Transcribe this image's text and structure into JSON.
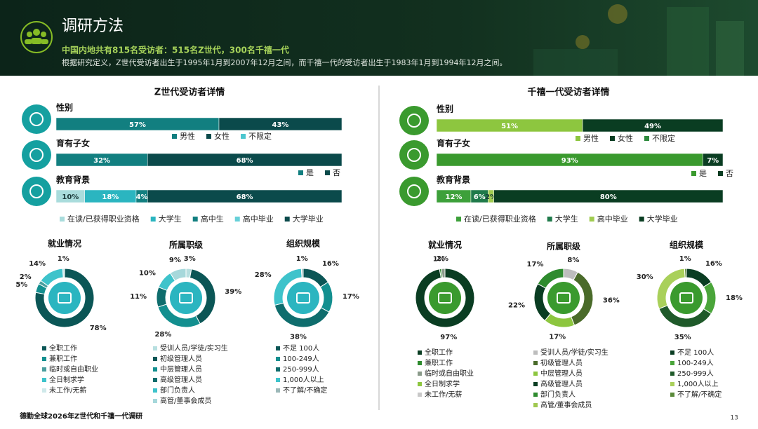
{
  "header": {
    "title": "调研方法",
    "subtitle": "中国内地共有815名受访者：515名Z世代，300名千禧一代",
    "note": "根据研究定义，Z世代受访者出生于1995年1月到2007年12月之间，而千禧一代的受访者出生于1983年1月到1994年12月之间。"
  },
  "panels": [
    {
      "title": "Z世代受访者详情"
    },
    {
      "title": "千禧一代受访者详情"
    }
  ],
  "footer": {
    "source": "德勤全球2026年Z世代和千禧一代调研",
    "page": "13"
  },
  "chart_data": [
    {
      "type": "stacked-bar",
      "title": "性别",
      "xlim": [
        0,
        100
      ],
      "series": [
        {
          "name": "男性",
          "color": "#127f80",
          "values": [
            57
          ],
          "value_labels": [
            "57%"
          ]
        },
        {
          "name": "女性",
          "color": "#0b4a4b",
          "values": [
            43
          ],
          "value_labels": [
            "43%"
          ]
        },
        {
          "name": "不限定",
          "color": "#4cc6cf",
          "values": [
            0
          ],
          "value_labels": [
            null
          ]
        }
      ]
    },
    {
      "type": "stacked-bar",
      "title": "育有子女",
      "xlim": [
        0,
        100
      ],
      "series": [
        {
          "name": "是",
          "color": "#127f80",
          "values": [
            32
          ],
          "value_labels": [
            "32%"
          ]
        },
        {
          "name": "否",
          "color": "#0b4a4b",
          "values": [
            68
          ],
          "value_labels": [
            "68%"
          ]
        }
      ]
    },
    {
      "type": "stacked-bar",
      "title": "教育背景",
      "xlim": [
        0,
        100
      ],
      "series": [
        {
          "name": "在读/已获得职业资格",
          "color": "#a9dcdc",
          "values": [
            10
          ],
          "value_labels": [
            "10%"
          ]
        },
        {
          "name": "大学生",
          "color": "#2bb5c0",
          "values": [
            18
          ],
          "value_labels": [
            "18%"
          ]
        },
        {
          "name": "高中生",
          "color": "#127f80",
          "values": [
            4
          ],
          "value_labels": [
            "4%"
          ]
        },
        {
          "name": "高中毕业",
          "color": "#66d0d8",
          "values": [
            0
          ],
          "value_labels": [
            null
          ]
        },
        {
          "name": "大学毕业",
          "color": "#0b4a4b",
          "values": [
            68
          ],
          "value_labels": [
            "68%"
          ]
        }
      ]
    },
    {
      "type": "donut",
      "title": "就业情况",
      "categories": [
        "全职工作",
        "兼职工作",
        "临时或自由职业",
        "全日制求学",
        "未工作/无薪"
      ],
      "values": [
        78,
        5,
        2,
        14,
        1
      ],
      "value_labels": [
        "78%",
        "5%",
        "2%",
        "14%",
        "1%"
      ],
      "colors": [
        "#0b5656",
        "#138f8f",
        "#4a9e9e",
        "#3ec3cb",
        "#cfe9ea"
      ]
    },
    {
      "type": "donut",
      "title": "所属职级",
      "categories": [
        "受训人员/学徒/实习生",
        "初级管理人员",
        "中层管理人员",
        "高级管理人员",
        "部门负责人",
        "高管/董事会成员"
      ],
      "values": [
        3,
        39,
        28,
        11,
        10,
        9
      ],
      "value_labels": [
        "3%",
        "39%",
        "28%",
        "11%",
        "10%",
        "9%"
      ],
      "colors": [
        "#b7dfe0",
        "#0b5656",
        "#138f8f",
        "#0f6d6d",
        "#3ec3cb",
        "#a6d8db"
      ]
    },
    {
      "type": "donut",
      "title": "组织规模",
      "categories": [
        "不足 100人",
        "100-249人",
        "250-999人",
        "1,000人以上",
        "不了解/不确定"
      ],
      "values": [
        16,
        17,
        38,
        28,
        1
      ],
      "value_labels": [
        "16%",
        "17%",
        "38%",
        "28%",
        "1%"
      ],
      "colors": [
        "#0b5656",
        "#138f8f",
        "#0f6d6d",
        "#3ec3cb",
        "#9cb8b8"
      ]
    },
    {
      "type": "stacked-bar",
      "title": "性别",
      "xlim": [
        0,
        100
      ],
      "series": [
        {
          "name": "男性",
          "color": "#8dc63f",
          "values": [
            51
          ],
          "value_labels": [
            "51%"
          ]
        },
        {
          "name": "女性",
          "color": "#0a3d22",
          "values": [
            49
          ],
          "value_labels": [
            "49%"
          ]
        },
        {
          "name": "不限定",
          "color": "#2e8b3e",
          "values": [
            0
          ],
          "value_labels": [
            null
          ]
        }
      ]
    },
    {
      "type": "stacked-bar",
      "title": "育有子女",
      "xlim": [
        0,
        100
      ],
      "series": [
        {
          "name": "是",
          "color": "#3a9a2e",
          "values": [
            93
          ],
          "value_labels": [
            "93%"
          ]
        },
        {
          "name": "否",
          "color": "#0a3d22",
          "values": [
            7
          ],
          "value_labels": [
            "7%"
          ]
        }
      ]
    },
    {
      "type": "stacked-bar",
      "title": "教育背景",
      "xlim": [
        0,
        100
      ],
      "series": [
        {
          "name": "在读/已获得职业资格",
          "color": "#3da03a",
          "values": [
            12
          ],
          "value_labels": [
            "12%"
          ]
        },
        {
          "name": "大学生",
          "color": "#1f7a4a",
          "values": [
            6
          ],
          "value_labels": [
            "6%"
          ]
        },
        {
          "name": "高中毕业",
          "color": "#a0cc50",
          "values": [
            2
          ],
          "value_labels": [
            "2%"
          ]
        },
        {
          "name": "大学毕业",
          "color": "#0a3d22",
          "values": [
            80
          ],
          "value_labels": [
            "80%"
          ]
        }
      ]
    },
    {
      "type": "donut",
      "title": "就业情况",
      "categories": [
        "全职工作",
        "兼职工作",
        "临时或自由职业",
        "全日制求学",
        "未工作/无薪"
      ],
      "values": [
        97,
        1,
        2,
        0,
        0
      ],
      "value_labels": [
        "97%",
        "1%",
        "2%",
        null,
        null
      ],
      "colors": [
        "#0a3d22",
        "#2e8b2e",
        "#8a9a8a",
        "#8dc63f",
        "#c8c8c8"
      ]
    },
    {
      "type": "donut",
      "title": "所属职级",
      "categories": [
        "受训人员/学徒/实习生",
        "初级管理人员",
        "中层管理人员",
        "高级管理人员",
        "部门负责人",
        "高管/董事会成员"
      ],
      "values": [
        8,
        36,
        17,
        22,
        17,
        0
      ],
      "value_labels": [
        "8%",
        "36%",
        "17%",
        "22%",
        "17%",
        null
      ],
      "colors": [
        "#bdbdbd",
        "#4a6b2a",
        "#8dc63f",
        "#0a3d22",
        "#2e8b2e",
        "#a0c850"
      ]
    },
    {
      "type": "donut",
      "title": "组织规模",
      "categories": [
        "不足 100人",
        "100-249人",
        "250-999人",
        "1,000人以上",
        "不了解/不确定"
      ],
      "values": [
        16,
        18,
        35,
        30,
        1
      ],
      "value_labels": [
        "16%",
        "18%",
        "35%",
        "30%",
        "1%"
      ],
      "colors": [
        "#0a3d22",
        "#4aa53a",
        "#1f5a2a",
        "#a9d05a",
        "#5a8a3a"
      ]
    }
  ]
}
